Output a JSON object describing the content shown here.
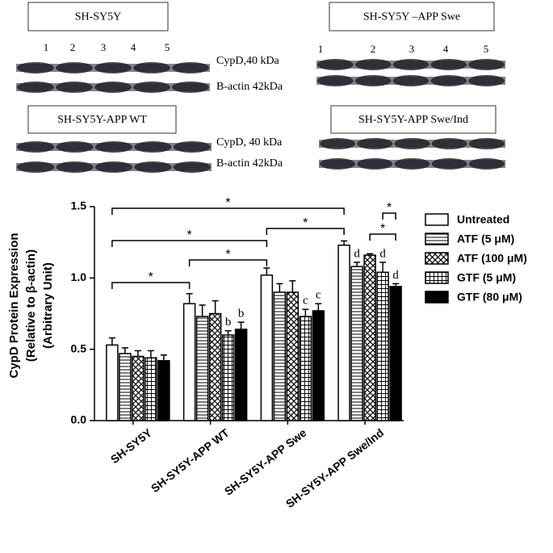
{
  "blots": [
    {
      "title": "SH-SY5Y",
      "lanes": [
        "1",
        "2",
        "3",
        "4",
        "5"
      ],
      "bands": [
        "CypD,40 kDa",
        "B-actin 42kDa"
      ]
    },
    {
      "title": "SH-SY5Y –APP Swe",
      "lanes": [
        "1",
        "2",
        "3",
        "4",
        "5"
      ]
    },
    {
      "title": "SH-SY5Y-APP  WT",
      "bands": [
        "CypD, 40 kDa",
        "B-actin 42kDa"
      ]
    },
    {
      "title": "SH-SY5Y-APP  Swe/Ind"
    }
  ],
  "chart_data": {
    "type": "bar",
    "ylabel": [
      "CypD Protein Expression",
      "(Relative to β-actin)",
      "(Arbitrary Unit)"
    ],
    "categories": [
      "SH-SY5Y",
      "SH-SY5Y-APP WT",
      "SH-SY5Y-APP Swe",
      "SH-SY5Y-APP Swe/Ind"
    ],
    "series": [
      {
        "name": "Untreated",
        "color": "#ffffff",
        "values": [
          0.53,
          0.82,
          1.02,
          1.23
        ],
        "errors": [
          0.05,
          0.07,
          0.05,
          0.03
        ]
      },
      {
        "name": "ATF (5 μM)",
        "color": "#ffffff",
        "hatch": "horizontal",
        "values": [
          0.47,
          0.73,
          0.9,
          1.08
        ],
        "errors": [
          0.04,
          0.08,
          0.06,
          0.03
        ]
      },
      {
        "name": "ATF (100 μM)",
        "color": "#ffffff",
        "hatch": "crosshatch",
        "values": [
          0.45,
          0.75,
          0.9,
          1.16
        ],
        "errors": [
          0.04,
          0.09,
          0.08,
          0.01
        ]
      },
      {
        "name": "GTF (5 μM)",
        "color": "#ffffff",
        "hatch": "grid",
        "values": [
          0.44,
          0.6,
          0.73,
          1.04
        ],
        "errors": [
          0.05,
          0.03,
          0.05,
          0.07
        ]
      },
      {
        "name": "GTF (80 μM)",
        "color": "#000000",
        "values": [
          0.42,
          0.64,
          0.77,
          0.94
        ],
        "errors": [
          0.04,
          0.05,
          0.05,
          0.02
        ]
      }
    ],
    "annotations": [
      {
        "text": "b",
        "series": 3,
        "category": 1
      },
      {
        "text": "b",
        "series": 4,
        "category": 1
      },
      {
        "text": "c",
        "series": 3,
        "category": 2
      },
      {
        "text": "c",
        "series": 4,
        "category": 2
      },
      {
        "text": "d",
        "series": 1,
        "category": 3
      },
      {
        "text": "d",
        "series": 3,
        "category": 3
      },
      {
        "text": "d",
        "series": 4,
        "category": 3
      }
    ],
    "significance": [
      {
        "text": "*",
        "from": [
          0,
          0
        ],
        "to": [
          1,
          0
        ]
      },
      {
        "text": "*",
        "from": [
          1,
          0
        ],
        "to": [
          2,
          0
        ]
      },
      {
        "text": "*",
        "from": [
          0,
          0
        ],
        "to": [
          2,
          0
        ]
      },
      {
        "text": "*",
        "from": [
          2,
          0
        ],
        "to": [
          3,
          0
        ]
      },
      {
        "text": "*",
        "from": [
          0,
          0
        ],
        "to": [
          3,
          0
        ]
      },
      {
        "text": "*",
        "from": [
          3,
          2
        ],
        "to": [
          3,
          4
        ]
      },
      {
        "text": "*",
        "from": [
          3,
          3
        ],
        "to": [
          3,
          4
        ]
      }
    ],
    "ylim": [
      0,
      1.5
    ],
    "yticks": [
      {
        "value": 0,
        "label": "0.0"
      },
      0.5,
      {
        "value": 1,
        "label": "1.0"
      },
      1.5
    ],
    "grid": false,
    "legend": "right"
  }
}
